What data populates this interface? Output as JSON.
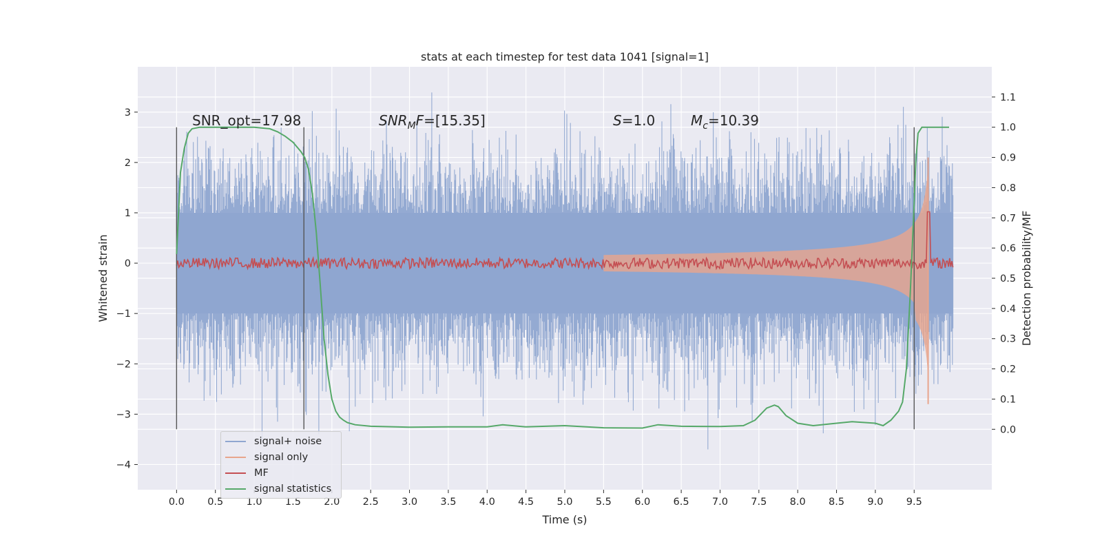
{
  "chart_data": {
    "type": "line",
    "title": "stats at each timestep for test data 1041 [signal=1]",
    "xlabel": "Time (s)",
    "ylabel_left": "Whitened strain",
    "ylabel_right": "Detection probability/MF",
    "xlim": [
      -0.5,
      10.5
    ],
    "ylim_left": [
      -4.5,
      3.9
    ],
    "ylim_right": [
      -0.2,
      1.2
    ],
    "x_ticks": [
      0.0,
      0.5,
      1.0,
      1.5,
      2.0,
      2.5,
      3.0,
      3.5,
      4.0,
      4.5,
      5.0,
      5.5,
      6.0,
      6.5,
      7.0,
      7.5,
      8.0,
      8.5,
      9.0,
      9.5
    ],
    "x_tick_labels": [
      "0.0",
      "0.5",
      "1.0",
      "1.5",
      "2.0",
      "2.5",
      "3.0",
      "3.5",
      "4.0",
      "4.5",
      "5.0",
      "5.5",
      "6.0",
      "6.5",
      "7.0",
      "7.5",
      "8.0",
      "8.5",
      "9.0",
      "9.5"
    ],
    "y_left_ticks": [
      -4,
      -3,
      -2,
      -1,
      0,
      1,
      2,
      3
    ],
    "y_left_tick_labels": [
      "−4",
      "−3",
      "−2",
      "−1",
      "0",
      "1",
      "2",
      "3"
    ],
    "y_right_ticks": [
      0.0,
      0.1,
      0.2,
      0.3,
      0.4,
      0.5,
      0.6,
      0.7,
      0.8,
      0.9,
      1.0,
      1.1
    ],
    "y_right_tick_labels": [
      "0.0",
      "0.1",
      "0.2",
      "0.3",
      "0.4",
      "0.5",
      "0.6",
      "0.7",
      "0.8",
      "0.9",
      "1.0",
      "1.1"
    ],
    "grid": true,
    "legend_placement": "bottom-left",
    "series": [
      {
        "name": "signal+ noise",
        "axis": "left",
        "color": "#8fa6d0",
        "style": "noise",
        "x_range": [
          0.0,
          10.0
        ],
        "typical_amplitude": 2.2,
        "max_peaks": [
          3.55,
          -3.7
        ]
      },
      {
        "name": "signal only",
        "axis": "left",
        "color": "#e8a58c",
        "style": "chirp",
        "x_range": [
          0.0,
          9.7
        ],
        "merger_time": 9.68,
        "peak_amplitude": 2.1
      },
      {
        "name": "MF",
        "axis": "right",
        "color": "#c44e52",
        "style": "noise-band",
        "x_range": [
          0.0,
          10.0
        ],
        "baseline": 0.55,
        "band_width": 0.02,
        "peak": [
          9.68,
          0.72
        ]
      },
      {
        "name": "signal statistics",
        "axis": "right",
        "color": "#55a868",
        "style": "line",
        "x": [
          0.0,
          0.05,
          0.1,
          0.15,
          0.2,
          0.3,
          0.5,
          0.8,
          1.0,
          1.2,
          1.3,
          1.4,
          1.5,
          1.6,
          1.65,
          1.7,
          1.75,
          1.8,
          1.85,
          1.9,
          1.95,
          2.0,
          2.05,
          2.1,
          2.15,
          2.2,
          2.3,
          2.5,
          3.0,
          3.5,
          4.0,
          4.2,
          4.5,
          5.0,
          5.5,
          6.0,
          6.2,
          6.5,
          7.0,
          7.3,
          7.45,
          7.6,
          7.7,
          7.75,
          7.85,
          8.0,
          8.2,
          8.5,
          8.7,
          9.0,
          9.1,
          9.2,
          9.3,
          9.35,
          9.4,
          9.45,
          9.5,
          9.52,
          9.55,
          9.6,
          9.7,
          9.8,
          9.9,
          9.95
        ],
        "y": [
          0.58,
          0.85,
          0.93,
          0.98,
          0.995,
          1.0,
          1.0,
          1.0,
          1.0,
          0.995,
          0.985,
          0.97,
          0.95,
          0.92,
          0.9,
          0.86,
          0.78,
          0.65,
          0.48,
          0.3,
          0.18,
          0.1,
          0.06,
          0.04,
          0.03,
          0.022,
          0.015,
          0.01,
          0.007,
          0.008,
          0.008,
          0.015,
          0.008,
          0.012,
          0.005,
          0.004,
          0.015,
          0.01,
          0.009,
          0.012,
          0.03,
          0.07,
          0.08,
          0.075,
          0.045,
          0.02,
          0.012,
          0.02,
          0.025,
          0.02,
          0.012,
          0.03,
          0.06,
          0.09,
          0.2,
          0.45,
          0.75,
          0.88,
          0.98,
          1.0,
          1.0,
          1.0,
          1.0,
          1.0
        ]
      }
    ],
    "vertical_lines": [
      0.0,
      1.64,
      9.5
    ],
    "annotations": {
      "snr_opt": "SNR_opt=17.98",
      "snr_mf_main": "SNR",
      "snr_mf_sub": "M",
      "snr_mf_mid": "F",
      "snr_mf_value": "=[15.35]",
      "s_label": "S",
      "s_value": "=1.0",
      "mc_main": "M",
      "mc_sub": "c",
      "mc_value": "=10.39"
    }
  }
}
